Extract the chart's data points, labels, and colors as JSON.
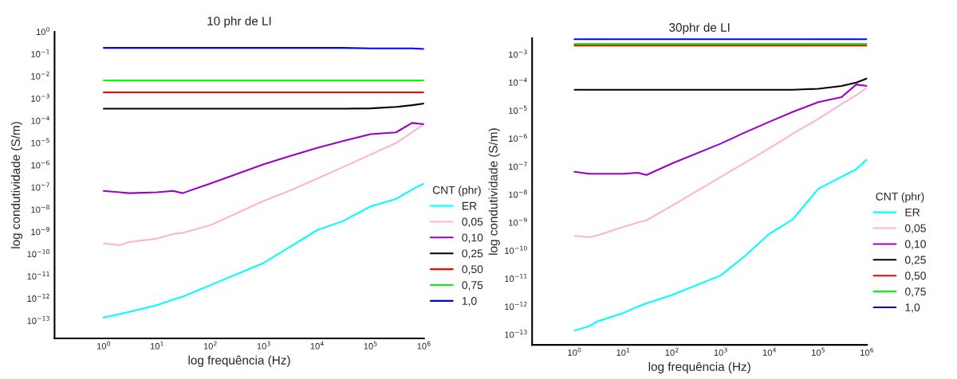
{
  "chart_data": [
    {
      "type": "line",
      "title": "10 phr de LI",
      "xlabel": "log frequência (Hz)",
      "ylabel": "log condutividade (S/m)",
      "legend_title": "CNT (phr)",
      "legend": "right",
      "log": "xy",
      "grid": false,
      "x": [
        1,
        2,
        3,
        10,
        20,
        30,
        100,
        1000,
        3000,
        10000,
        30000,
        100000,
        300000,
        600000,
        1000000
      ],
      "xlim": [
        0.12,
        1000000
      ],
      "ylim": [
        1.6e-14,
        1
      ],
      "xticks": [
        {
          "value": 1,
          "label": "10$^{0}$"
        },
        {
          "value": 10,
          "label": "10$^{1}$"
        },
        {
          "value": 100,
          "label": "10$^{2}$"
        },
        {
          "value": 1000,
          "label": "10$^{3}$"
        },
        {
          "value": 10000,
          "label": "10$^{4}$"
        },
        {
          "value": 100000,
          "label": "10$^{5}$"
        },
        {
          "value": 1000000,
          "label": "10$^{6}$"
        }
      ],
      "yticks": [
        {
          "value": 1,
          "label": "10$^{0}$"
        },
        {
          "value": 0.1,
          "label": "10$^{−1}$"
        },
        {
          "value": 0.01,
          "label": "10$^{−2}$"
        },
        {
          "value": 0.001,
          "label": "10$^{−3}$"
        },
        {
          "value": 0.0001,
          "label": "10$^{−4}$"
        },
        {
          "value": 1e-05,
          "label": "10$^{−5}$"
        },
        {
          "value": 1e-06,
          "label": "10$^{−6}$"
        },
        {
          "value": 1e-07,
          "label": "10$^{−7}$"
        },
        {
          "value": 1e-08,
          "label": "10$^{−8}$"
        },
        {
          "value": 1e-09,
          "label": "10$^{−9}$"
        },
        {
          "value": 1e-10,
          "label": "10$^{−10}$"
        },
        {
          "value": 1e-11,
          "label": "10$^{−11}$"
        },
        {
          "value": 1e-12,
          "label": "10$^{−12}$"
        },
        {
          "value": 1e-13,
          "label": "10$^{−13}$"
        }
      ],
      "series": [
        {
          "name": "ER",
          "color": "#00ffff",
          "values": [
            1.4e-13,
            2e-13,
            2.5e-13,
            5e-13,
            9e-13,
            1.2e-12,
            4e-12,
            4e-11,
            2e-10,
            1.2e-09,
            3e-09,
            1.4e-08,
            3e-08,
            8e-08,
            1.5e-07
          ]
        },
        {
          "name": "0,05",
          "color": "#ffb3d9",
          "values": [
            3e-10,
            2.5e-10,
            3.5e-10,
            5e-10,
            8e-10,
            9e-10,
            2e-09,
            2.5e-08,
            7e-08,
            2.5e-07,
            8e-07,
            3e-06,
            1e-05,
            3e-05,
            7e-05
          ]
        },
        {
          "name": "0,10",
          "color": "#9900cc",
          "values": [
            7e-08,
            6e-08,
            5.5e-08,
            6e-08,
            7e-08,
            5.5e-08,
            1.5e-07,
            1.1e-06,
            2.5e-06,
            6e-06,
            1.2e-05,
            2.5e-05,
            3e-05,
            8e-05,
            7e-05
          ]
        },
        {
          "name": "0,25",
          "color": "#000000",
          "values": [
            0.00035,
            0.00035,
            0.00035,
            0.00035,
            0.00035,
            0.00035,
            0.00035,
            0.00035,
            0.00035,
            0.00035,
            0.00035,
            0.00036,
            0.00042,
            0.0005,
            0.0006
          ]
        },
        {
          "name": "0,50",
          "color": "#ff0000",
          "values": [
            0.0019,
            0.0019,
            0.0019,
            0.0019,
            0.0019,
            0.0019,
            0.0019,
            0.0019,
            0.0019,
            0.0019,
            0.0019,
            0.0019,
            0.0019,
            0.0019,
            0.0019
          ]
        },
        {
          "name": "0,75",
          "color": "#00ff00",
          "values": [
            0.0065,
            0.0065,
            0.0065,
            0.0065,
            0.0065,
            0.0065,
            0.0065,
            0.0065,
            0.0065,
            0.0065,
            0.0065,
            0.0065,
            0.0065,
            0.0065,
            0.0065
          ]
        },
        {
          "name": "1,0",
          "color": "#0000ff",
          "values": [
            0.19,
            0.19,
            0.19,
            0.19,
            0.19,
            0.19,
            0.19,
            0.19,
            0.19,
            0.19,
            0.19,
            0.18,
            0.18,
            0.18,
            0.17
          ]
        }
      ]
    },
    {
      "type": "line",
      "title": "30phr de LI",
      "xlabel": "log frequência (Hz)",
      "ylabel": "log condutividade (S/m)",
      "legend_title": "CNT (phr)",
      "legend": "right",
      "log": "xy",
      "grid": false,
      "x": [
        1,
        2,
        3,
        10,
        20,
        30,
        100,
        1000,
        3000,
        10000,
        30000,
        100000,
        300000,
        600000,
        1000000
      ],
      "xlim": [
        0.135,
        1000000
      ],
      "ylim": [
        4.3e-14,
        0.0038
      ],
      "xticks": [
        {
          "value": 1,
          "label": "10$^{0}$"
        },
        {
          "value": 10,
          "label": "10$^{1}$"
        },
        {
          "value": 100,
          "label": "10$^{2}$"
        },
        {
          "value": 1000,
          "label": "10$^{3}$"
        },
        {
          "value": 10000,
          "label": "10$^{4}$"
        },
        {
          "value": 100000,
          "label": "10$^{5}$"
        },
        {
          "value": 1000000,
          "label": "10$^{6}$"
        }
      ],
      "yticks": [
        {
          "value": 0.001,
          "label": "10$^{−3}$"
        },
        {
          "value": 0.0001,
          "label": "10$^{−4}$"
        },
        {
          "value": 1e-05,
          "label": "10$^{−5}$"
        },
        {
          "value": 1e-06,
          "label": "10$^{−6}$"
        },
        {
          "value": 1e-07,
          "label": "10$^{−7}$"
        },
        {
          "value": 1e-08,
          "label": "10$^{−8}$"
        },
        {
          "value": 1e-09,
          "label": "10$^{−9}$"
        },
        {
          "value": 1e-10,
          "label": "10$^{−10}$"
        },
        {
          "value": 1e-11,
          "label": "10$^{−11}$"
        },
        {
          "value": 1e-12,
          "label": "10$^{−12}$"
        },
        {
          "value": 1e-13,
          "label": "10$^{−13}$"
        }
      ],
      "series": [
        {
          "name": "ER",
          "color": "#00ffff",
          "values": [
            1.4e-13,
            2e-13,
            3e-13,
            5.9e-13,
            1e-12,
            1.3e-12,
            2.6e-12,
            1.3e-11,
            6e-11,
            4e-10,
            1.3e-09,
            1.6e-08,
            4.3e-08,
            8e-08,
            1.8e-07
          ]
        },
        {
          "name": "0,05",
          "color": "#ffb3d9",
          "values": [
            3.4e-10,
            3e-10,
            3.5e-10,
            7e-10,
            1e-09,
            1.2e-09,
            4e-09,
            4.3e-08,
            1.3e-07,
            4.5e-07,
            1.5e-06,
            5e-06,
            1.7e-05,
            3.5e-05,
            6.5e-05
          ]
        },
        {
          "name": "0,10",
          "color": "#9900cc",
          "values": [
            6.5e-08,
            5.5e-08,
            5.5e-08,
            5.5e-08,
            6e-08,
            5e-08,
            1.3e-07,
            6.6e-07,
            1.6e-06,
            4e-06,
            9e-06,
            2e-05,
            3e-05,
            8.5e-05,
            7.5e-05
          ]
        },
        {
          "name": "0,25",
          "color": "#000000",
          "values": [
            5.5e-05,
            5.5e-05,
            5.5e-05,
            5.5e-05,
            5.5e-05,
            5.5e-05,
            5.5e-05,
            5.5e-05,
            5.5e-05,
            5.5e-05,
            5.5e-05,
            6e-05,
            7.5e-05,
            0.0001,
            0.00014
          ]
        },
        {
          "name": "0,50",
          "color": "#ff0000",
          "values": [
            0.0021,
            0.0021,
            0.0021,
            0.0021,
            0.0021,
            0.0021,
            0.0021,
            0.0021,
            0.0021,
            0.0021,
            0.0021,
            0.0021,
            0.0021,
            0.0021,
            0.0021
          ]
        },
        {
          "name": "0,75",
          "color": "#00ff00",
          "values": [
            0.0024,
            0.0024,
            0.0024,
            0.0024,
            0.0024,
            0.0024,
            0.0024,
            0.0024,
            0.0024,
            0.0024,
            0.0024,
            0.0024,
            0.0024,
            0.0024,
            0.0024
          ]
        },
        {
          "name": "1,0",
          "color": "#0000ff",
          "values": [
            0.0035,
            0.0035,
            0.0035,
            0.0035,
            0.0035,
            0.0035,
            0.0035,
            0.0035,
            0.0035,
            0.0035,
            0.0035,
            0.0035,
            0.0035,
            0.0035,
            0.0035
          ]
        }
      ]
    }
  ]
}
